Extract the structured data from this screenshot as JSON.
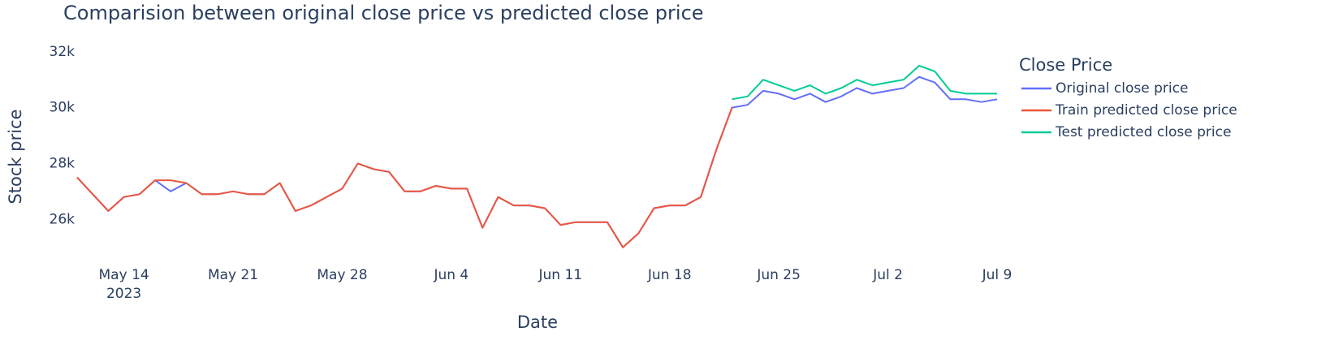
{
  "chart_data": {
    "type": "line",
    "title": "Comparision between original close price vs predicted close price",
    "x_label": "Date",
    "y_label": "Stock price",
    "legend_title": "Close Price",
    "legend_position": "right",
    "x": [
      "2023-05-11",
      "2023-05-12",
      "2023-05-13",
      "2023-05-14",
      "2023-05-15",
      "2023-05-16",
      "2023-05-17",
      "2023-05-18",
      "2023-05-19",
      "2023-05-20",
      "2023-05-21",
      "2023-05-22",
      "2023-05-23",
      "2023-05-24",
      "2023-05-25",
      "2023-05-26",
      "2023-05-27",
      "2023-05-28",
      "2023-05-29",
      "2023-05-30",
      "2023-05-31",
      "2023-06-01",
      "2023-06-02",
      "2023-06-03",
      "2023-06-04",
      "2023-06-05",
      "2023-06-06",
      "2023-06-07",
      "2023-06-08",
      "2023-06-09",
      "2023-06-10",
      "2023-06-11",
      "2023-06-12",
      "2023-06-13",
      "2023-06-14",
      "2023-06-15",
      "2023-06-16",
      "2023-06-17",
      "2023-06-18",
      "2023-06-19",
      "2023-06-20",
      "2023-06-21",
      "2023-06-22",
      "2023-06-23",
      "2023-06-24",
      "2023-06-25",
      "2023-06-26",
      "2023-06-27",
      "2023-06-28",
      "2023-06-29",
      "2023-06-30",
      "2023-07-01",
      "2023-07-02",
      "2023-07-03",
      "2023-07-04",
      "2023-07-05",
      "2023-07-06",
      "2023-07-07",
      "2023-07-08",
      "2023-07-09"
    ],
    "series": [
      {
        "name": "Original close price",
        "color": "#636efa",
        "values": [
          27500,
          26900,
          26300,
          26800,
          26900,
          27400,
          27000,
          27300,
          26900,
          26900,
          27000,
          26900,
          26900,
          27300,
          26300,
          26500,
          26800,
          27100,
          28000,
          27800,
          27700,
          27000,
          27000,
          27200,
          27100,
          27100,
          25700,
          26800,
          26500,
          26500,
          26400,
          25800,
          25900,
          25900,
          25900,
          25000,
          25500,
          26400,
          26500,
          26500,
          26800,
          28500,
          30000,
          30100,
          30600,
          30500,
          30300,
          30500,
          30200,
          30400,
          30700,
          30500,
          30600,
          30700,
          31100,
          30900,
          30300,
          30300,
          30200,
          30300
        ]
      },
      {
        "name": "Train predicted close price",
        "color": "#ef553b",
        "values": [
          27500,
          26900,
          26300,
          26800,
          26900,
          27400,
          27400,
          27300,
          26900,
          26900,
          27000,
          26900,
          26900,
          27300,
          26300,
          26500,
          26800,
          27100,
          28000,
          27800,
          27700,
          27000,
          27000,
          27200,
          27100,
          27100,
          25700,
          26800,
          26500,
          26500,
          26400,
          25800,
          25900,
          25900,
          25900,
          25000,
          25500,
          26400,
          26500,
          26500,
          26800,
          28500,
          30000,
          null,
          null,
          null,
          null,
          null,
          null,
          null,
          null,
          null,
          null,
          null,
          null,
          null,
          null,
          null,
          null,
          null
        ]
      },
      {
        "name": "Test predicted close price",
        "color": "#00cc96",
        "values": [
          null,
          null,
          null,
          null,
          null,
          null,
          null,
          null,
          null,
          null,
          null,
          null,
          null,
          null,
          null,
          null,
          null,
          null,
          null,
          null,
          null,
          null,
          null,
          null,
          null,
          null,
          null,
          null,
          null,
          null,
          null,
          null,
          null,
          null,
          null,
          null,
          null,
          null,
          null,
          null,
          null,
          null,
          30300,
          30400,
          31000,
          30800,
          30600,
          30800,
          30500,
          30700,
          31000,
          30800,
          30900,
          31000,
          31500,
          31300,
          30600,
          30500,
          30500,
          30500
        ]
      }
    ],
    "xlim": [
      "2023-05-11",
      "2023-07-09"
    ],
    "xticks": [
      {
        "value": "2023-05-14",
        "label": [
          "May 14",
          "2023"
        ]
      },
      {
        "value": "2023-05-21",
        "label": "May 21"
      },
      {
        "value": "2023-05-28",
        "label": "May 28"
      },
      {
        "value": "2023-06-04",
        "label": "Jun 4"
      },
      {
        "value": "2023-06-11",
        "label": "Jun 11"
      },
      {
        "value": "2023-06-18",
        "label": "Jun 18"
      },
      {
        "value": "2023-06-25",
        "label": "Jun 25"
      },
      {
        "value": "2023-07-02",
        "label": "Jul 2"
      },
      {
        "value": "2023-07-09",
        "label": "Jul 9"
      }
    ],
    "ylim": [
      24700,
      32400
    ],
    "yticks": [
      {
        "value": 26000,
        "label": "26k"
      },
      {
        "value": 28000,
        "label": "28k"
      },
      {
        "value": 30000,
        "label": "30k"
      },
      {
        "value": 32000,
        "label": "32k"
      }
    ],
    "grid": false
  }
}
